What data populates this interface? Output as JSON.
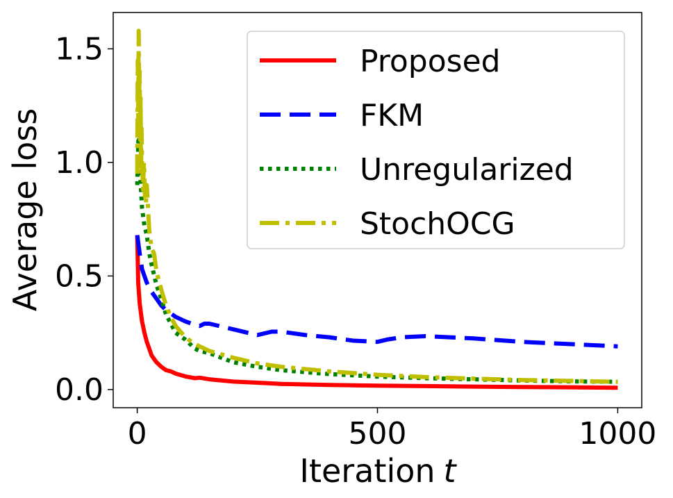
{
  "chart_data": {
    "type": "line",
    "xlabel": "Iteration",
    "xlabel_var": "t",
    "ylabel": "Average loss",
    "xlim": [
      -50,
      1050
    ],
    "ylim": [
      -0.08,
      1.66
    ],
    "xticks": [
      0,
      500,
      1000
    ],
    "xtick_labels": [
      "0",
      "500",
      "1000"
    ],
    "yticks": [
      0.0,
      0.5,
      1.0,
      1.5
    ],
    "ytick_labels": [
      "0.0",
      "0.5",
      "1.0",
      "1.5"
    ],
    "grid": false,
    "legend_position": "top-right",
    "series": [
      {
        "name": "Proposed",
        "color": "#ff0000",
        "dash": "solid",
        "x": [
          0,
          2,
          5,
          10,
          15,
          20,
          25,
          30,
          40,
          50,
          60,
          70,
          80,
          100,
          120,
          130,
          150,
          200,
          250,
          300,
          400,
          500,
          600,
          700,
          800,
          900,
          1000
        ],
        "y": [
          0.68,
          0.47,
          0.38,
          0.3,
          0.25,
          0.21,
          0.18,
          0.15,
          0.12,
          0.1,
          0.085,
          0.08,
          0.07,
          0.058,
          0.05,
          0.052,
          0.045,
          0.035,
          0.03,
          0.025,
          0.02,
          0.017,
          0.015,
          0.013,
          0.011,
          0.01,
          0.008
        ]
      },
      {
        "name": "FKM",
        "color": "#0000ff",
        "dash": "dashed",
        "x": [
          0,
          5,
          10,
          20,
          30,
          40,
          50,
          60,
          80,
          100,
          120,
          130,
          140,
          150,
          180,
          200,
          250,
          280,
          300,
          350,
          400,
          450,
          500,
          520,
          550,
          600,
          650,
          700,
          800,
          900,
          1000
        ],
        "y": [
          0.68,
          0.6,
          0.53,
          0.47,
          0.43,
          0.4,
          0.37,
          0.35,
          0.32,
          0.3,
          0.285,
          0.28,
          0.29,
          0.29,
          0.275,
          0.265,
          0.24,
          0.255,
          0.255,
          0.24,
          0.23,
          0.215,
          0.21,
          0.22,
          0.23,
          0.235,
          0.23,
          0.225,
          0.21,
          0.2,
          0.19
        ]
      },
      {
        "name": "Unregularized",
        "color": "#008000",
        "dash": "dotted",
        "x": [
          0,
          3,
          6,
          10,
          15,
          20,
          25,
          30,
          40,
          50,
          60,
          70,
          80,
          100,
          120,
          130,
          150,
          200,
          250,
          300,
          400,
          500,
          600,
          700,
          800,
          900,
          1000
        ],
        "y": [
          0.9,
          1.15,
          0.95,
          0.8,
          0.72,
          0.68,
          0.6,
          0.55,
          0.46,
          0.4,
          0.33,
          0.29,
          0.25,
          0.22,
          0.18,
          0.17,
          0.16,
          0.12,
          0.1,
          0.085,
          0.068,
          0.057,
          0.05,
          0.045,
          0.04,
          0.036,
          0.034
        ]
      },
      {
        "name": "StochOCG",
        "color": "#bfbf00",
        "dash": "dashdot",
        "x": [
          0,
          1,
          2,
          3,
          4,
          5,
          6,
          7,
          8,
          9,
          10,
          12,
          14,
          16,
          18,
          20,
          25,
          30,
          35,
          40,
          50,
          60,
          70,
          80,
          100,
          120,
          130,
          150,
          200,
          250,
          300,
          400,
          500,
          600,
          700,
          800,
          900,
          1000
        ],
        "y": [
          0.95,
          1.45,
          1.2,
          1.58,
          1.3,
          1.4,
          1.1,
          1.3,
          0.95,
          1.15,
          1.0,
          0.88,
          1.0,
          0.85,
          0.82,
          0.9,
          0.7,
          0.62,
          0.6,
          0.52,
          0.44,
          0.37,
          0.32,
          0.28,
          0.23,
          0.2,
          0.19,
          0.17,
          0.14,
          0.115,
          0.1,
          0.08,
          0.065,
          0.055,
          0.048,
          0.042,
          0.038,
          0.034
        ]
      }
    ]
  }
}
